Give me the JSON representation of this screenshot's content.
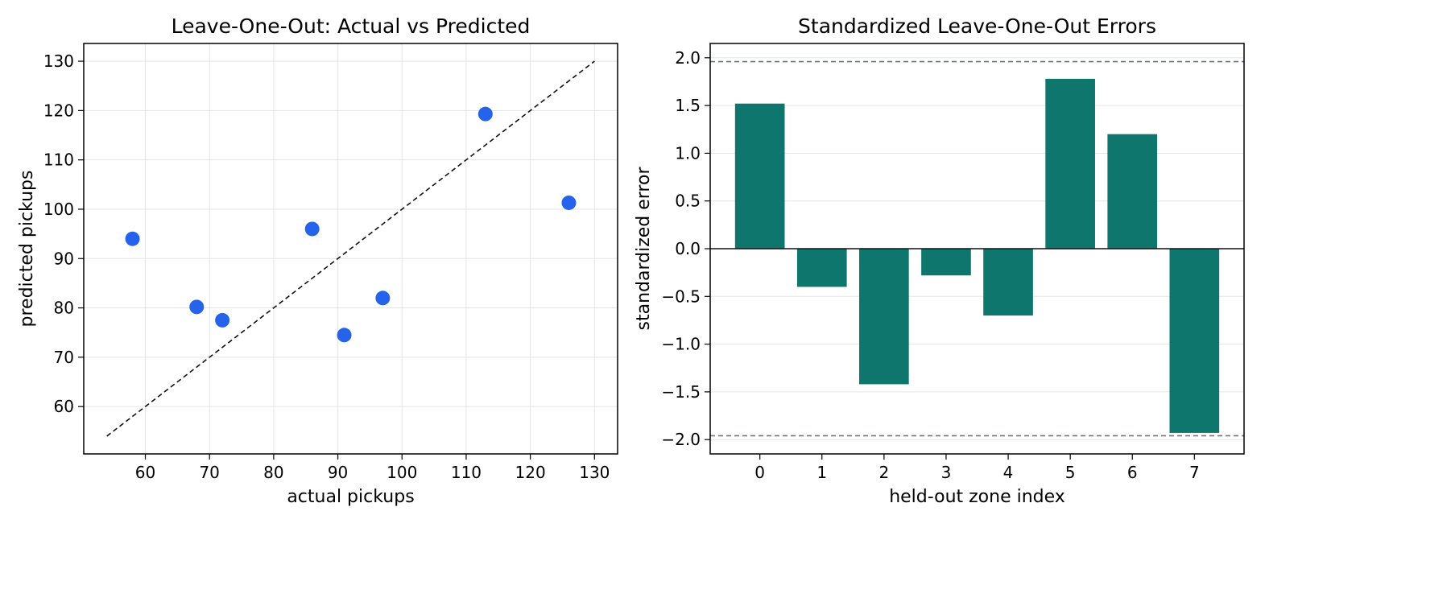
{
  "chart_data": [
    {
      "type": "scatter",
      "title": "Leave-One-Out: Actual vs Predicted",
      "xlabel": "actual pickups",
      "ylabel": "predicted pickups",
      "xlim": [
        50.4,
        133.6
      ],
      "ylim": [
        50.4,
        133.6
      ],
      "xticks": [
        60,
        70,
        80,
        90,
        100,
        110,
        120,
        130
      ],
      "yticks": [
        60,
        70,
        80,
        90,
        100,
        110,
        120,
        130
      ],
      "grid": true,
      "points": [
        {
          "x": 58,
          "y": 94.0
        },
        {
          "x": 68,
          "y": 80.2
        },
        {
          "x": 72,
          "y": 77.5
        },
        {
          "x": 86,
          "y": 96.0
        },
        {
          "x": 91,
          "y": 74.5
        },
        {
          "x": 97,
          "y": 82.0
        },
        {
          "x": 113,
          "y": 119.3
        },
        {
          "x": 126,
          "y": 101.3
        }
      ],
      "reference_line": {
        "x": [
          54,
          130
        ],
        "y": [
          54,
          130
        ],
        "style": "dashed"
      },
      "colors": {
        "points": "#2563eb",
        "reference_line": "#111111"
      }
    },
    {
      "type": "bar",
      "title": "Standardized Leave-One-Out Errors",
      "xlabel": "held-out zone index",
      "ylabel": "standardized error",
      "categories": [
        "0",
        "1",
        "2",
        "3",
        "4",
        "5",
        "6",
        "7"
      ],
      "values": [
        1.52,
        -0.4,
        -1.42,
        -0.28,
        -0.7,
        1.78,
        1.2,
        -1.93
      ],
      "xlim": [
        -0.8,
        7.8
      ],
      "ylim": [
        -2.15,
        2.15
      ],
      "yticks": [
        2.0,
        1.5,
        1.0,
        0.5,
        0.0,
        -0.5,
        -1.0,
        -1.5,
        -2.0
      ],
      "ytick_labels": [
        "2.0",
        "1.5",
        "1.0",
        "0.5",
        "0.0",
        "−0.5",
        "−1.0",
        "−1.5",
        "−2.0"
      ],
      "grid": true,
      "reference_lines": [
        {
          "y": 1.96,
          "style": "dashed"
        },
        {
          "y": -1.96,
          "style": "dashed"
        },
        {
          "y": 0,
          "style": "solid"
        }
      ],
      "colors": {
        "bars": "#0f766e",
        "reference_lines": "#6b7280",
        "zero_line": "#111111"
      }
    }
  ]
}
